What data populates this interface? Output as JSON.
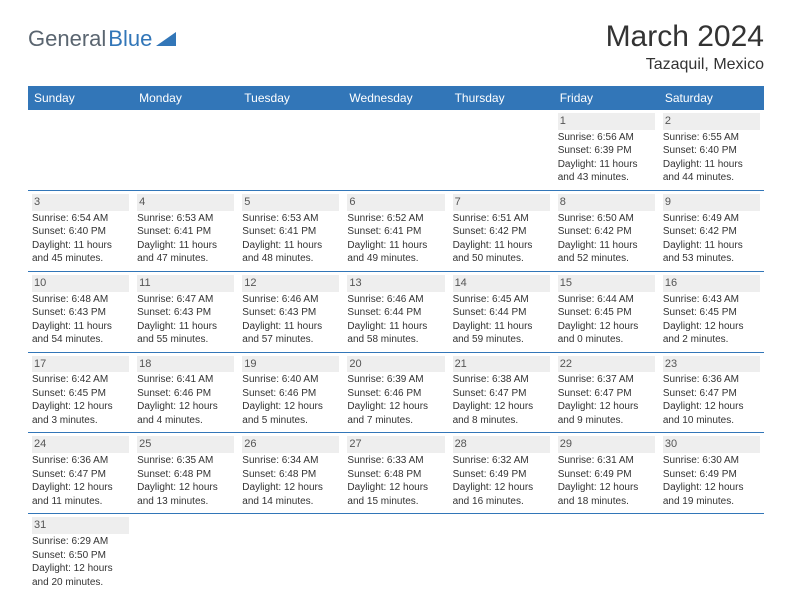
{
  "logo": {
    "text1": "General",
    "text2": "Blue",
    "color1": "#5a6570",
    "color2": "#3276b8"
  },
  "title": "March 2024",
  "location": "Tazaquil, Mexico",
  "theme": {
    "header_bg": "#3276b8",
    "header_text": "#ffffff",
    "cell_border": "#3276b8",
    "daynum_bg": "#eeeeee",
    "body_text": "#333333",
    "page_bg": "#ffffff"
  },
  "day_headers": [
    "Sunday",
    "Monday",
    "Tuesday",
    "Wednesday",
    "Thursday",
    "Friday",
    "Saturday"
  ],
  "weeks": [
    [
      {
        "n": "",
        "sr": "",
        "ss": "",
        "dl": ""
      },
      {
        "n": "",
        "sr": "",
        "ss": "",
        "dl": ""
      },
      {
        "n": "",
        "sr": "",
        "ss": "",
        "dl": ""
      },
      {
        "n": "",
        "sr": "",
        "ss": "",
        "dl": ""
      },
      {
        "n": "",
        "sr": "",
        "ss": "",
        "dl": ""
      },
      {
        "n": "1",
        "sr": "Sunrise: 6:56 AM",
        "ss": "Sunset: 6:39 PM",
        "dl": "Daylight: 11 hours and 43 minutes."
      },
      {
        "n": "2",
        "sr": "Sunrise: 6:55 AM",
        "ss": "Sunset: 6:40 PM",
        "dl": "Daylight: 11 hours and 44 minutes."
      }
    ],
    [
      {
        "n": "3",
        "sr": "Sunrise: 6:54 AM",
        "ss": "Sunset: 6:40 PM",
        "dl": "Daylight: 11 hours and 45 minutes."
      },
      {
        "n": "4",
        "sr": "Sunrise: 6:53 AM",
        "ss": "Sunset: 6:41 PM",
        "dl": "Daylight: 11 hours and 47 minutes."
      },
      {
        "n": "5",
        "sr": "Sunrise: 6:53 AM",
        "ss": "Sunset: 6:41 PM",
        "dl": "Daylight: 11 hours and 48 minutes."
      },
      {
        "n": "6",
        "sr": "Sunrise: 6:52 AM",
        "ss": "Sunset: 6:41 PM",
        "dl": "Daylight: 11 hours and 49 minutes."
      },
      {
        "n": "7",
        "sr": "Sunrise: 6:51 AM",
        "ss": "Sunset: 6:42 PM",
        "dl": "Daylight: 11 hours and 50 minutes."
      },
      {
        "n": "8",
        "sr": "Sunrise: 6:50 AM",
        "ss": "Sunset: 6:42 PM",
        "dl": "Daylight: 11 hours and 52 minutes."
      },
      {
        "n": "9",
        "sr": "Sunrise: 6:49 AM",
        "ss": "Sunset: 6:42 PM",
        "dl": "Daylight: 11 hours and 53 minutes."
      }
    ],
    [
      {
        "n": "10",
        "sr": "Sunrise: 6:48 AM",
        "ss": "Sunset: 6:43 PM",
        "dl": "Daylight: 11 hours and 54 minutes."
      },
      {
        "n": "11",
        "sr": "Sunrise: 6:47 AM",
        "ss": "Sunset: 6:43 PM",
        "dl": "Daylight: 11 hours and 55 minutes."
      },
      {
        "n": "12",
        "sr": "Sunrise: 6:46 AM",
        "ss": "Sunset: 6:43 PM",
        "dl": "Daylight: 11 hours and 57 minutes."
      },
      {
        "n": "13",
        "sr": "Sunrise: 6:46 AM",
        "ss": "Sunset: 6:44 PM",
        "dl": "Daylight: 11 hours and 58 minutes."
      },
      {
        "n": "14",
        "sr": "Sunrise: 6:45 AM",
        "ss": "Sunset: 6:44 PM",
        "dl": "Daylight: 11 hours and 59 minutes."
      },
      {
        "n": "15",
        "sr": "Sunrise: 6:44 AM",
        "ss": "Sunset: 6:45 PM",
        "dl": "Daylight: 12 hours and 0 minutes."
      },
      {
        "n": "16",
        "sr": "Sunrise: 6:43 AM",
        "ss": "Sunset: 6:45 PM",
        "dl": "Daylight: 12 hours and 2 minutes."
      }
    ],
    [
      {
        "n": "17",
        "sr": "Sunrise: 6:42 AM",
        "ss": "Sunset: 6:45 PM",
        "dl": "Daylight: 12 hours and 3 minutes."
      },
      {
        "n": "18",
        "sr": "Sunrise: 6:41 AM",
        "ss": "Sunset: 6:46 PM",
        "dl": "Daylight: 12 hours and 4 minutes."
      },
      {
        "n": "19",
        "sr": "Sunrise: 6:40 AM",
        "ss": "Sunset: 6:46 PM",
        "dl": "Daylight: 12 hours and 5 minutes."
      },
      {
        "n": "20",
        "sr": "Sunrise: 6:39 AM",
        "ss": "Sunset: 6:46 PM",
        "dl": "Daylight: 12 hours and 7 minutes."
      },
      {
        "n": "21",
        "sr": "Sunrise: 6:38 AM",
        "ss": "Sunset: 6:47 PM",
        "dl": "Daylight: 12 hours and 8 minutes."
      },
      {
        "n": "22",
        "sr": "Sunrise: 6:37 AM",
        "ss": "Sunset: 6:47 PM",
        "dl": "Daylight: 12 hours and 9 minutes."
      },
      {
        "n": "23",
        "sr": "Sunrise: 6:36 AM",
        "ss": "Sunset: 6:47 PM",
        "dl": "Daylight: 12 hours and 10 minutes."
      }
    ],
    [
      {
        "n": "24",
        "sr": "Sunrise: 6:36 AM",
        "ss": "Sunset: 6:47 PM",
        "dl": "Daylight: 12 hours and 11 minutes."
      },
      {
        "n": "25",
        "sr": "Sunrise: 6:35 AM",
        "ss": "Sunset: 6:48 PM",
        "dl": "Daylight: 12 hours and 13 minutes."
      },
      {
        "n": "26",
        "sr": "Sunrise: 6:34 AM",
        "ss": "Sunset: 6:48 PM",
        "dl": "Daylight: 12 hours and 14 minutes."
      },
      {
        "n": "27",
        "sr": "Sunrise: 6:33 AM",
        "ss": "Sunset: 6:48 PM",
        "dl": "Daylight: 12 hours and 15 minutes."
      },
      {
        "n": "28",
        "sr": "Sunrise: 6:32 AM",
        "ss": "Sunset: 6:49 PM",
        "dl": "Daylight: 12 hours and 16 minutes."
      },
      {
        "n": "29",
        "sr": "Sunrise: 6:31 AM",
        "ss": "Sunset: 6:49 PM",
        "dl": "Daylight: 12 hours and 18 minutes."
      },
      {
        "n": "30",
        "sr": "Sunrise: 6:30 AM",
        "ss": "Sunset: 6:49 PM",
        "dl": "Daylight: 12 hours and 19 minutes."
      }
    ],
    [
      {
        "n": "31",
        "sr": "Sunrise: 6:29 AM",
        "ss": "Sunset: 6:50 PM",
        "dl": "Daylight: 12 hours and 20 minutes."
      },
      {
        "n": "",
        "sr": "",
        "ss": "",
        "dl": ""
      },
      {
        "n": "",
        "sr": "",
        "ss": "",
        "dl": ""
      },
      {
        "n": "",
        "sr": "",
        "ss": "",
        "dl": ""
      },
      {
        "n": "",
        "sr": "",
        "ss": "",
        "dl": ""
      },
      {
        "n": "",
        "sr": "",
        "ss": "",
        "dl": ""
      },
      {
        "n": "",
        "sr": "",
        "ss": "",
        "dl": ""
      }
    ]
  ]
}
